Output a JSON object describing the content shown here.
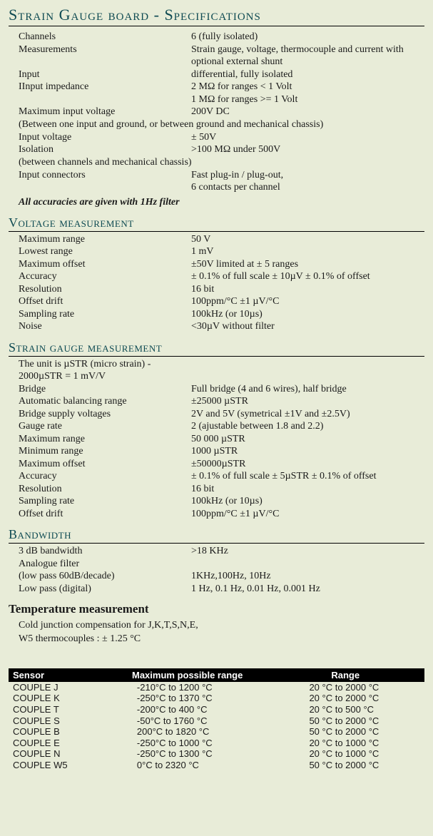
{
  "title": "Strain Gauge board - Specifications",
  "specs": {
    "rows": [
      {
        "label": "Channels",
        "value": "6 (fully isolated)"
      },
      {
        "label": "Measurements",
        "value": "Strain gauge, voltage, thermocouple and current with optional external shunt"
      },
      {
        "label": "Input",
        "value": "differential, fully isolated"
      },
      {
        "label": "IInput impedance",
        "value": "2 MΩ for ranges < 1 Volt"
      },
      {
        "label": "",
        "value": "1 MΩ for ranges >= 1 Volt"
      },
      {
        "label": "Maximum input voltage",
        "value": "200V DC"
      }
    ],
    "note1": "(Between one input and ground, or between ground and mechanical chassis)",
    "rows2": [
      {
        "label": "Input voltage",
        "value": "± 50V"
      },
      {
        "label": "Isolation",
        "value": ">100 MΩ under 500V"
      }
    ],
    "note2": "(between channels and mechanical chassis)",
    "rows3": [
      {
        "label": "Input connectors",
        "value": "Fast plug-in / plug-out,"
      },
      {
        "label": "",
        "value": "6 contacts per channel"
      }
    ],
    "italic": "All accuracies are given with 1Hz filter"
  },
  "voltage": {
    "head": "Voltage measurement",
    "rows": [
      {
        "label": "Maximum range",
        "value": "50 V"
      },
      {
        "label": "Lowest range",
        "value": "1 mV"
      },
      {
        "label": "Maximum offset",
        "value": "±50V limited at ± 5 ranges"
      },
      {
        "label": "Accuracy",
        "value": "± 0.1% of full scale  ± 10µV ± 0.1% of offset"
      },
      {
        "label": "Resolution",
        "value": "16 bit"
      },
      {
        "label": "Offset drift",
        "value": "100ppm/°C ±1 µV/°C"
      },
      {
        "label": "Sampling rate",
        "value": "100kHz (or 10µs)"
      },
      {
        "label": "Noise",
        "value": "<30µV without filter"
      }
    ]
  },
  "strain": {
    "head": "Strain gauge measurement",
    "rows": [
      {
        "label": "The unit is µSTR (micro strain) - 2000µSTR = 1 mV/V",
        "value": ""
      },
      {
        "label": "Bridge",
        "value": "Full bridge (4 and 6 wires), half bridge"
      },
      {
        "label": "Automatic balancing range",
        "value": "±25000 µSTR"
      },
      {
        "label": "Bridge supply voltages",
        "value": "2V and 5V (symetrical ±1V and ±2.5V)"
      },
      {
        "label": "Gauge rate",
        "value": "2 (ajustable between 1.8 and 2.2)"
      },
      {
        "label": "Maximum range",
        "value": "50 000 µSTR"
      },
      {
        "label": "Minimum range",
        "value": "1000 µSTR"
      },
      {
        "label": "Maximum offset",
        "value": "±50000µSTR"
      },
      {
        "label": "Accuracy",
        "value": "± 0.1% of full scale ± 5µSTR ± 0.1% of offset"
      },
      {
        "label": "Resolution",
        "value": "16 bit"
      },
      {
        "label": "Sampling rate",
        "value": "100kHz (or 10µs)"
      },
      {
        "label": "Offset drift",
        "value": "100ppm/°C ±1 µV/°C"
      }
    ]
  },
  "bandwidth": {
    "head": "Bandwidth",
    "rows": [
      {
        "label": "3 dB bandwidth",
        "value": ">18 KHz"
      },
      {
        "label": "Analogue filter",
        "value": ""
      },
      {
        "label": "(low pass 60dB/decade)",
        "value": "1KHz,100Hz, 10Hz"
      },
      {
        "label": "Low pass (digital)",
        "value": "1 Hz, 0.1 Hz, 0.01 Hz, 0.001 Hz"
      }
    ]
  },
  "temperature": {
    "head": "Temperature measurement",
    "line1": "Cold junction compensation for J,K,T,S,N,E,",
    "line2": "W5 thermocouples : ± 1.25 °C"
  },
  "table": {
    "headers": [
      "Sensor",
      "Maximum possible range",
      "Range"
    ],
    "rows": [
      [
        "COUPLE J",
        "-210°C to 1200 °C",
        "20 °C to 2000 °C"
      ],
      [
        "COUPLE K",
        "-250°C to 1370 °C",
        "20 °C to 2000 °C"
      ],
      [
        "COUPLE T",
        "-200°C to 400 °C",
        "20 °C to 500 °C"
      ],
      [
        "COUPLE S",
        "-50°C to 1760 °C",
        "50 °C to 2000 °C"
      ],
      [
        "COUPLE B",
        "200°C to 1820 °C",
        "50 °C to 2000 °C"
      ],
      [
        "COUPLE E",
        "-250°C to 1000 °C",
        "20 °C to 1000 °C"
      ],
      [
        "COUPLE N",
        "-250°C to 1300 °C",
        "20 °C to 1000 °C"
      ],
      [
        "COUPLE W5",
        "0°C to 2320 °C",
        "50 °C to 2000 °C"
      ]
    ]
  },
  "colors": {
    "bg": "#e8ecd8",
    "heading": "#0e4a52",
    "tableHeaderBg": "#000000",
    "tableHeaderFg": "#ffffff"
  }
}
